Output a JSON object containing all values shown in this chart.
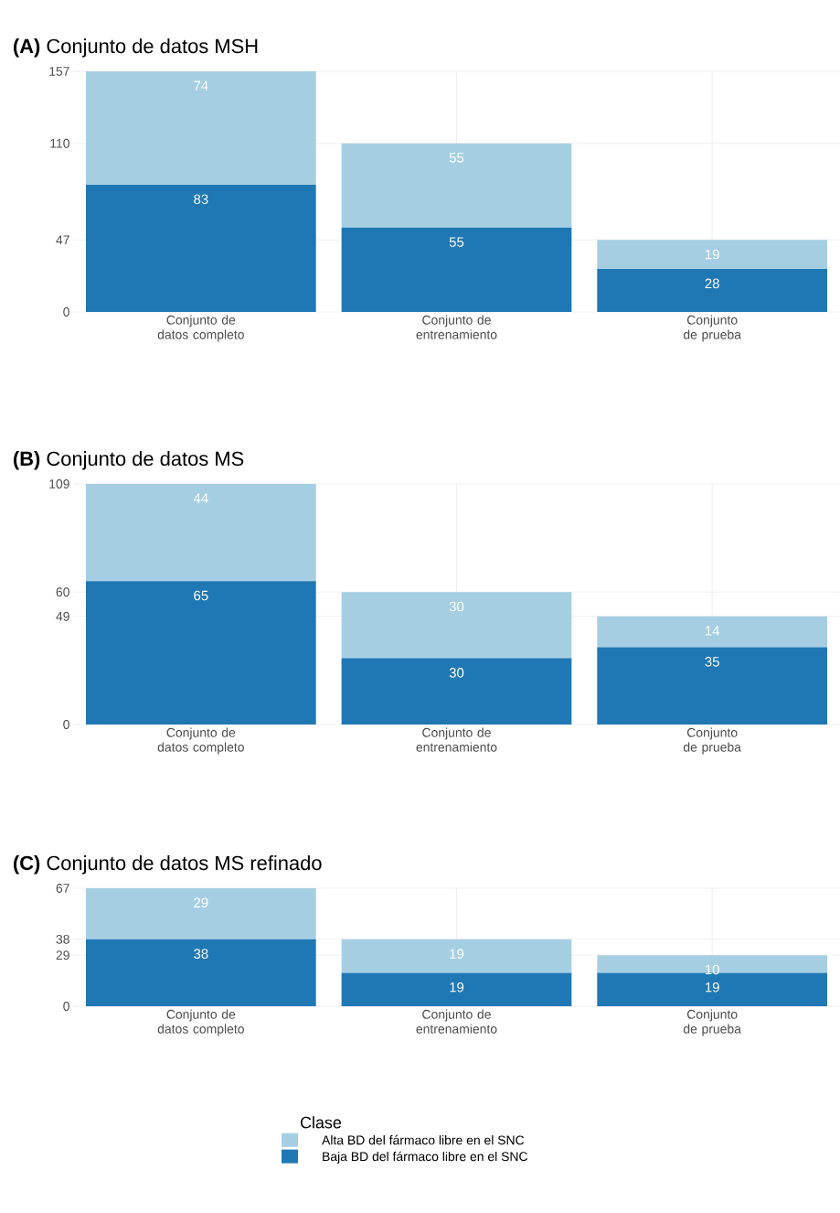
{
  "chart_data": [
    {
      "type": "bar",
      "title": "**(A)** Conjunto de datos MSH",
      "categories": [
        "Conjunto de datos completo",
        "Conjunto de entrenamiento",
        "Conjunto de prueba"
      ],
      "stacked": true,
      "data_labels": true,
      "grid": true,
      "ylim": [
        0,
        157
      ],
      "yticks": [
        0,
        47,
        110,
        157
      ],
      "series": [
        {
          "color": "#1f78b4",
          "values": [
            83,
            55,
            28
          ]
        },
        {
          "color": "#a6cee3",
          "values": [
            74,
            55,
            19
          ]
        }
      ]
    },
    {
      "type": "bar",
      "title": "**(B)** Conjunto de datos MS",
      "categories": [
        "Conjunto de datos completo",
        "Conjunto de entrenamiento",
        "Conjunto de prueba"
      ],
      "stacked": true,
      "data_labels": true,
      "grid": true,
      "ylim": [
        0,
        109
      ],
      "yticks": [
        0,
        49,
        60,
        109
      ],
      "series": [
        {
          "color": "#1f78b4",
          "values": [
            65,
            30,
            35
          ]
        },
        {
          "color": "#a6cee3",
          "values": [
            44,
            30,
            14
          ]
        }
      ]
    },
    {
      "type": "bar",
      "title": "**(C)** Conjunto de datos MS refinado",
      "categories": [
        "Conjunto de datos completo",
        "Conjunto de entrenamiento",
        "Conjunto de prueba"
      ],
      "stacked": true,
      "data_labels": true,
      "grid": true,
      "ylim": [
        0,
        67
      ],
      "yticks": [
        0,
        29,
        38,
        67
      ],
      "legend": "bottom",
      "legend_title": "Clase",
      "series": [
        {
          "name": "Baja BD del fármaco libre en el SNC",
          "color": "#1f78b4",
          "values": [
            38,
            19,
            19
          ]
        },
        {
          "name": "Alta BD del fármaco libre en el SNC",
          "color": "#a6cee3",
          "values": [
            29,
            19,
            10
          ]
        }
      ]
    }
  ]
}
